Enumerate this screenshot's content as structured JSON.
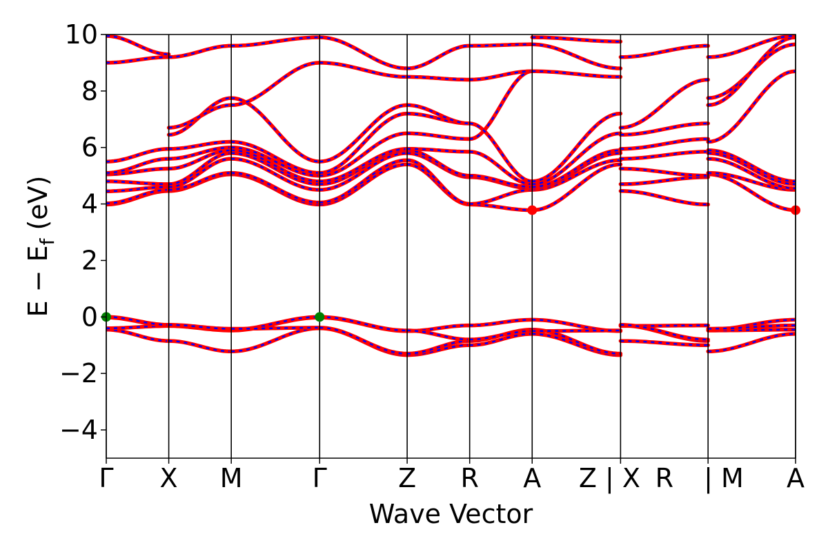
{
  "chart_data": {
    "type": "line",
    "title": "",
    "xlabel": "Wave Vector",
    "ylabel_main": "E − E",
    "ylabel_sub": "f",
    "ylabel_unit": " (eV)",
    "ylim": [
      -5,
      10
    ],
    "yticks": [
      -4,
      -2,
      0,
      2,
      4,
      6,
      8,
      10
    ],
    "ytick_labels": [
      "−4",
      "−2",
      "0",
      "2",
      "4",
      "6",
      "8",
      "10"
    ],
    "k_points": [
      {
        "label": "Γ",
        "x": 0.0
      },
      {
        "label": "X",
        "x": 0.5
      },
      {
        "label": "M",
        "x": 1.0
      },
      {
        "label": "Γ",
        "x": 1.7071
      },
      {
        "label": "Z",
        "x": 2.4071
      },
      {
        "label": "R",
        "x": 2.9071
      },
      {
        "label": "A",
        "x": 3.4071
      },
      {
        "label": "Z|X",
        "x": 4.1142
      },
      {
        "label": "R|M",
        "x": 4.8142
      },
      {
        "label": "A",
        "x": 5.5142
      }
    ],
    "k_point_labels": [
      "Γ",
      "X",
      "M",
      "Γ",
      "Z",
      "R",
      "A",
      "Z | X",
      "R",
      "| M",
      "A"
    ],
    "path_breaks": [
      4.1142,
      4.8142
    ],
    "xlim": [
      0,
      5.5142
    ],
    "segments": [
      {
        "from": "Γ",
        "to": "X",
        "x": [
          0.0,
          0.5
        ],
        "bands": [
          [
            -0.45,
            -0.85
          ],
          [
            -0.4,
            -0.32
          ],
          [
            -0.02,
            -0.3
          ],
          [
            0.0,
            -0.28
          ],
          [
            3.98,
            4.46
          ],
          [
            4.02,
            4.5
          ],
          [
            4.45,
            4.6
          ],
          [
            4.8,
            4.7
          ],
          [
            5.05,
            5.25
          ],
          [
            5.1,
            5.6
          ],
          [
            5.5,
            5.95
          ],
          [
            9.0,
            9.2
          ],
          [
            9.95,
            9.3
          ]
        ]
      },
      {
        "from": "X",
        "to": "M",
        "x": [
          0.5,
          1.0
        ],
        "bands": [
          [
            -0.85,
            -1.22
          ],
          [
            -0.32,
            -0.48
          ],
          [
            -0.3,
            -0.45
          ],
          [
            -0.28,
            -0.42
          ],
          [
            4.46,
            5.05
          ],
          [
            4.5,
            5.1
          ],
          [
            4.6,
            5.6
          ],
          [
            4.7,
            5.8
          ],
          [
            5.25,
            5.9
          ],
          [
            5.6,
            6.0
          ],
          [
            5.95,
            6.2
          ],
          [
            6.45,
            7.75
          ],
          [
            6.7,
            7.5
          ],
          [
            9.2,
            9.6
          ]
        ]
      },
      {
        "from": "M",
        "to": "Γ",
        "x": [
          1.0,
          1.7071
        ],
        "bands": [
          [
            -1.22,
            -0.4
          ],
          [
            -0.48,
            -0.02
          ],
          [
            -0.45,
            0.0
          ],
          [
            -0.42,
            -0.38
          ],
          [
            5.05,
            3.98
          ],
          [
            5.1,
            4.05
          ],
          [
            5.6,
            4.5
          ],
          [
            5.8,
            4.7
          ],
          [
            5.9,
            4.8
          ],
          [
            6.0,
            5.0
          ],
          [
            6.2,
            5.1
          ],
          [
            7.75,
            5.5
          ],
          [
            7.5,
            9.0
          ],
          [
            9.6,
            9.9
          ]
        ]
      },
      {
        "from": "Γ",
        "to": "Z",
        "x": [
          1.7071,
          2.4071
        ],
        "bands": [
          [
            -0.4,
            -1.35
          ],
          [
            -0.38,
            -1.3
          ],
          [
            -0.02,
            -0.5
          ],
          [
            0.0,
            -0.48
          ],
          [
            3.98,
            5.4
          ],
          [
            4.05,
            5.55
          ],
          [
            4.5,
            5.8
          ],
          [
            4.7,
            5.9
          ],
          [
            4.8,
            5.95
          ],
          [
            5.0,
            6.5
          ],
          [
            5.1,
            7.2
          ],
          [
            5.5,
            7.5
          ],
          [
            9.0,
            8.5
          ],
          [
            9.9,
            8.8
          ]
        ]
      },
      {
        "from": "Z",
        "to": "R",
        "x": [
          2.4071,
          2.9071
        ],
        "bands": [
          [
            -1.35,
            -1.0
          ],
          [
            -1.3,
            -0.85
          ],
          [
            -0.5,
            -0.3
          ],
          [
            -0.48,
            -0.8
          ],
          [
            5.4,
            3.98
          ],
          [
            5.55,
            4.0
          ],
          [
            5.8,
            4.95
          ],
          [
            5.9,
            5.0
          ],
          [
            5.95,
            5.85
          ],
          [
            6.5,
            6.3
          ],
          [
            7.2,
            6.85
          ],
          [
            7.5,
            6.85
          ],
          [
            8.5,
            8.4
          ],
          [
            8.8,
            9.6
          ]
        ]
      },
      {
        "from": "R",
        "to": "A",
        "x": [
          2.9071,
          3.4071
        ],
        "bands": [
          [
            -1.0,
            -0.6
          ],
          [
            -0.85,
            -0.45
          ],
          [
            -0.3,
            -0.1
          ],
          [
            -0.8,
            -0.5
          ],
          [
            3.98,
            3.78
          ],
          [
            4.0,
            4.5
          ],
          [
            4.95,
            4.55
          ],
          [
            5.0,
            4.6
          ],
          [
            5.85,
            4.7
          ],
          [
            6.3,
            8.7
          ],
          [
            6.85,
            4.8
          ],
          [
            9.6,
            9.65
          ],
          [
            8.4,
            8.7
          ]
        ]
      },
      {
        "from": "A",
        "to": "Z",
        "x": [
          3.4071,
          4.1142
        ],
        "bands": [
          [
            -0.6,
            -1.35
          ],
          [
            -0.45,
            -1.3
          ],
          [
            -0.1,
            -0.5
          ],
          [
            -0.5,
            -0.48
          ],
          [
            3.78,
            5.4
          ],
          [
            4.5,
            5.55
          ],
          [
            4.55,
            5.8
          ],
          [
            4.6,
            5.9
          ],
          [
            4.7,
            6.5
          ],
          [
            4.8,
            7.2
          ],
          [
            8.7,
            8.5
          ],
          [
            9.65,
            8.8
          ],
          [
            9.9,
            9.75
          ]
        ]
      },
      {
        "from": "X",
        "to": "R",
        "x": [
          4.1142,
          4.8142
        ],
        "bands": [
          [
            -0.85,
            -1.0
          ],
          [
            -0.32,
            -0.3
          ],
          [
            -0.3,
            -0.85
          ],
          [
            -0.28,
            -0.8
          ],
          [
            4.46,
            3.98
          ],
          [
            4.7,
            4.95
          ],
          [
            5.25,
            5.0
          ],
          [
            5.6,
            5.85
          ],
          [
            5.95,
            6.3
          ],
          [
            6.45,
            6.85
          ],
          [
            6.7,
            8.4
          ],
          [
            9.2,
            9.6
          ]
        ]
      },
      {
        "from": "M",
        "to": "A",
        "x": [
          4.8142,
          5.5142
        ],
        "bands": [
          [
            -1.22,
            -0.6
          ],
          [
            -0.48,
            -0.45
          ],
          [
            -0.45,
            -0.1
          ],
          [
            -0.42,
            -0.3
          ],
          [
            5.05,
            3.78
          ],
          [
            5.1,
            4.5
          ],
          [
            5.6,
            4.55
          ],
          [
            5.8,
            4.7
          ],
          [
            5.9,
            4.8
          ],
          [
            6.2,
            8.7
          ],
          [
            7.75,
            9.65
          ],
          [
            7.5,
            9.9
          ],
          [
            9.2,
            9.95
          ]
        ]
      }
    ],
    "markers": [
      {
        "x": 0.0,
        "y": 0.0,
        "color": "#008000",
        "role": "vbm"
      },
      {
        "x": 1.7071,
        "y": 0.0,
        "color": "#008000",
        "role": "vbm"
      },
      {
        "x": 3.4071,
        "y": 3.78,
        "color": "#ff0000",
        "role": "cbm"
      },
      {
        "x": 5.5142,
        "y": 3.78,
        "color": "#ff0000",
        "role": "cbm"
      }
    ],
    "colors": {
      "band": "#ff0000",
      "band_dash": "#0000ff",
      "axis": "#000000"
    }
  }
}
